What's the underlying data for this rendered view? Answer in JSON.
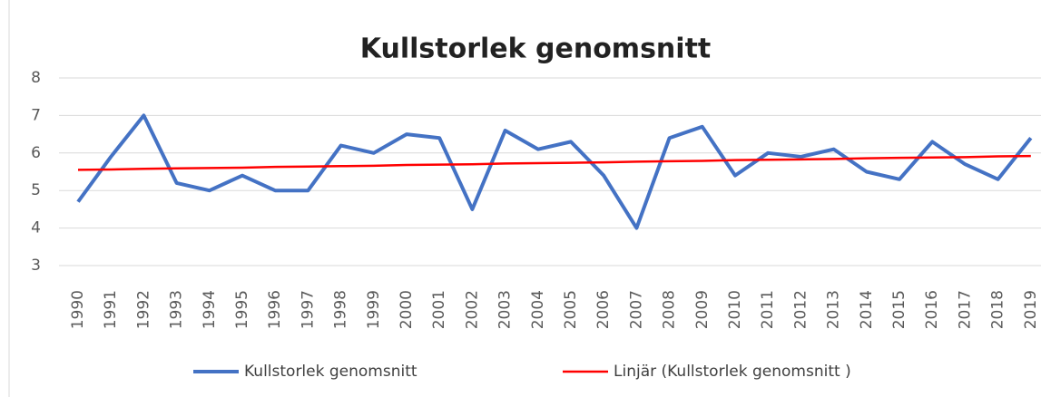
{
  "chart_data": {
    "type": "line",
    "title": "Kullstorlek genomsnitt",
    "categories": [
      "1990",
      "1991",
      "1992",
      "1993",
      "1994",
      "1995",
      "1996",
      "1997",
      "1998",
      "1999",
      "2000",
      "2001",
      "2002",
      "2003",
      "2004",
      "2005",
      "2006",
      "2007",
      "2008",
      "2009",
      "2010",
      "2011",
      "2012",
      "2013",
      "2014",
      "2015",
      "2016",
      "2017",
      "2018",
      "2019"
    ],
    "series": [
      {
        "name": "Kullstorlek genomsnitt",
        "color": "#4472c4",
        "values": [
          4.7,
          5.9,
          7.0,
          5.2,
          5.0,
          5.4,
          5.0,
          5.0,
          6.2,
          6.0,
          6.5,
          6.4,
          4.5,
          6.6,
          6.1,
          6.3,
          5.4,
          4.0,
          6.4,
          6.7,
          5.4,
          6.0,
          5.9,
          6.1,
          5.5,
          5.3,
          6.3,
          5.7,
          5.3,
          6.4
        ]
      },
      {
        "name": "Linjär (Kullstorlek genomsnitt  )",
        "color": "#ff0000",
        "values": [
          5.55,
          5.56,
          5.58,
          5.59,
          5.6,
          5.61,
          5.63,
          5.64,
          5.65,
          5.66,
          5.68,
          5.69,
          5.7,
          5.72,
          5.73,
          5.74,
          5.75,
          5.77,
          5.78,
          5.79,
          5.81,
          5.82,
          5.83,
          5.84,
          5.86,
          5.87,
          5.88,
          5.89,
          5.91,
          5.92
        ]
      }
    ],
    "ylim": [
      3,
      8
    ],
    "yticks": [
      3,
      4,
      5,
      6,
      7,
      8
    ],
    "grid": true,
    "legend": "bottom"
  }
}
